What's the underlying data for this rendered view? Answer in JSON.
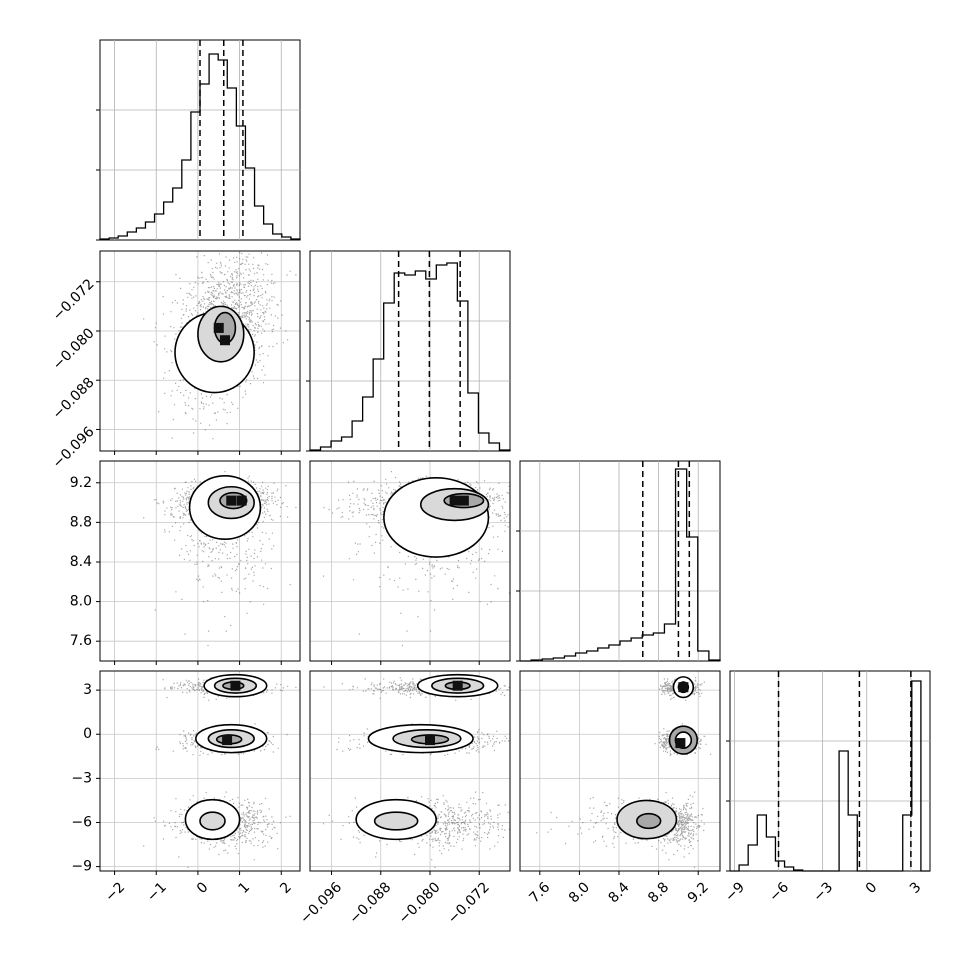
{
  "chart_data": {
    "type": "corner",
    "parameters": [
      {
        "ticks": [
          -2,
          -1,
          0,
          1,
          2
        ],
        "tick_labels": [
          "−2",
          "−1",
          "0",
          "1",
          "2"
        ],
        "range": [
          -2.35,
          2.45
        ],
        "quantiles": [
          0.05,
          0.62,
          1.08
        ]
      },
      {
        "ticks": [
          -0.096,
          -0.088,
          -0.08,
          -0.072
        ],
        "tick_labels": [
          "−0.096",
          "−0.088",
          "−0.080",
          "−0.072"
        ],
        "range": [
          -0.0995,
          -0.067
        ],
        "quantiles": [
          -0.0851,
          -0.0801,
          -0.0751
        ]
      },
      {
        "ticks": [
          7.6,
          8.0,
          8.4,
          8.8,
          9.2
        ],
        "tick_labels": [
          "7.6",
          "8.0",
          "8.4",
          "8.8",
          "9.2"
        ],
        "range": [
          7.4,
          9.42
        ],
        "quantiles": [
          8.64,
          9.0,
          9.11
        ]
      },
      {
        "ticks": [
          -9,
          -6,
          -3,
          0,
          3
        ],
        "tick_labels": [
          "−9",
          "−6",
          "−3",
          "0",
          "3"
        ],
        "range": [
          -9.3,
          4.3
        ],
        "quantiles": [
          -6.0,
          -0.5,
          3.0
        ]
      }
    ],
    "histograms": [
      [
        0.005,
        0.01,
        0.02,
        0.04,
        0.06,
        0.09,
        0.13,
        0.19,
        0.26,
        0.4,
        0.64,
        0.78,
        0.93,
        0.9,
        0.76,
        0.57,
        0.36,
        0.17,
        0.08,
        0.03,
        0.015,
        0.005
      ],
      [
        0.005,
        0.02,
        0.05,
        0.07,
        0.15,
        0.27,
        0.46,
        0.74,
        0.89,
        0.88,
        0.9,
        0.86,
        0.93,
        0.94,
        0.75,
        0.29,
        0.09,
        0.04,
        0.005
      ],
      [
        0.0,
        0.005,
        0.01,
        0.015,
        0.025,
        0.04,
        0.05,
        0.065,
        0.08,
        0.1,
        0.115,
        0.13,
        0.14,
        0.185,
        0.96,
        0.62,
        0.05,
        0.005
      ],
      [
        0.0,
        0.03,
        0.13,
        0.28,
        0.17,
        0.05,
        0.02,
        0.005,
        0.0,
        0.0,
        0.0,
        0.0,
        0.6,
        0.28,
        0.0,
        0.0,
        0.0,
        0.0,
        0.0,
        0.28,
        0.95,
        0.0
      ]
    ],
    "grid": true
  }
}
